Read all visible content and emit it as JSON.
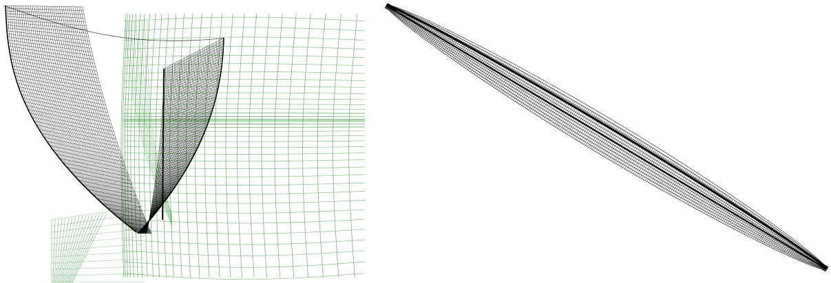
{
  "figure": {
    "panels": [
      {
        "id": "left",
        "content": "hull-section-mesh-with-background-grid",
        "colors": {
          "hull_mesh": "#000000",
          "background_grid": "#3a9a3a"
        }
      },
      {
        "id": "right",
        "content": "elongated-hull-surface-mesh",
        "colors": {
          "hull_mesh": "#000000"
        }
      }
    ],
    "background": "#ffffff"
  }
}
